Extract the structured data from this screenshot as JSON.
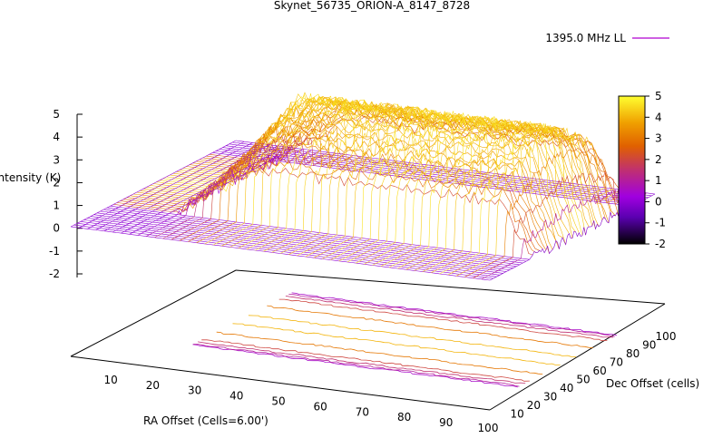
{
  "chart_data": {
    "type": "surface3d",
    "title": "Skynet_56735_ORION-A_8147_8728",
    "legend": {
      "label": "1395.0 MHz LL",
      "placement": "top-right",
      "color": "#b000d0"
    },
    "zlabel": "Intensity (K)",
    "xlabel": "RA Offset (Cells=6.00')",
    "ylabel": "Dec Offset (cells)",
    "zlim": [
      -2,
      5
    ],
    "z_ticks": [
      "5",
      "4",
      "3",
      "2",
      "1",
      "0",
      "-1",
      "-2"
    ],
    "x_ticks": [
      "10",
      "20",
      "30",
      "40",
      "50",
      "60",
      "70",
      "80",
      "90",
      "100"
    ],
    "y_ticks": [
      "10",
      "20",
      "30",
      "40",
      "50",
      "60",
      "70",
      "80",
      "90",
      "100"
    ],
    "colorbar": {
      "ticks": [
        "5",
        "4",
        "3",
        "2",
        "1",
        "0",
        "-1",
        "-2"
      ],
      "range": [
        -2,
        5
      ],
      "stops": [
        "#000000",
        "#5a00b0",
        "#a000e0",
        "#c03070",
        "#e06000",
        "#f0a000",
        "#ffff30"
      ]
    },
    "surface": {
      "x_range": [
        1,
        100
      ],
      "y_range": [
        1,
        100
      ],
      "ridge": {
        "x_start": 15,
        "x_end": 100,
        "y_center": 55,
        "y_half_width": 30,
        "peak_K": 4.4,
        "edge_K": 2.0,
        "base_K": 0.0
      }
    },
    "contour_levels_K": [
      0.5,
      1.0,
      1.5,
      2.0,
      3.0,
      4.0
    ]
  }
}
